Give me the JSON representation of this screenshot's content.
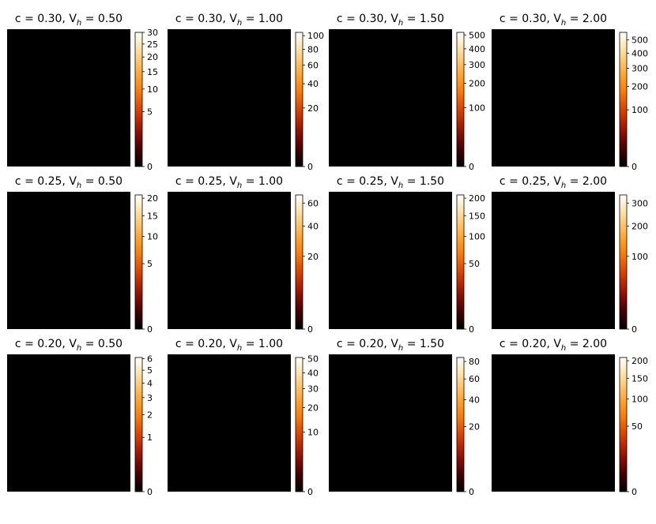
{
  "figure": {
    "title": ""
  },
  "chart_data": [
    {
      "type": "heatmap",
      "title_c": "c = 0.30",
      "title_v": "0.50",
      "vmax": 30,
      "colorbar_ticks": [
        0,
        5,
        10,
        15,
        20,
        25,
        30
      ],
      "dataset_index": 0
    },
    {
      "type": "heatmap",
      "title_c": "c = 0.30",
      "title_v": "1.00",
      "vmax": 105,
      "colorbar_ticks": [
        0,
        20,
        40,
        60,
        80,
        100
      ],
      "dataset_index": 1
    },
    {
      "type": "heatmap",
      "title_c": "c = 0.30",
      "title_v": "1.50",
      "vmax": 520,
      "colorbar_ticks": [
        0,
        100,
        200,
        300,
        400,
        500
      ],
      "dataset_index": 2
    },
    {
      "type": "heatmap",
      "title_c": "c = 0.30",
      "title_v": "2.00",
      "vmax": 560,
      "colorbar_ticks": [
        0,
        100,
        200,
        300,
        400,
        500
      ],
      "dataset_index": 3
    },
    {
      "type": "heatmap",
      "title_c": "c = 0.25",
      "title_v": "0.50",
      "vmax": 21,
      "colorbar_ticks": [
        0,
        5,
        10,
        15,
        20
      ],
      "dataset_index": 4
    },
    {
      "type": "heatmap",
      "title_c": "c = 0.25",
      "title_v": "1.00",
      "vmax": 68,
      "colorbar_ticks": [
        0,
        20,
        40,
        60
      ],
      "dataset_index": 5
    },
    {
      "type": "heatmap",
      "title_c": "c = 0.25",
      "title_v": "1.50",
      "vmax": 210,
      "colorbar_ticks": [
        0,
        50,
        100,
        150,
        200
      ],
      "dataset_index": 6
    },
    {
      "type": "heatmap",
      "title_c": "c = 0.25",
      "title_v": "2.00",
      "vmax": 340,
      "colorbar_ticks": [
        0,
        100,
        200,
        300
      ],
      "dataset_index": 7
    },
    {
      "type": "heatmap",
      "title_c": "c = 0.20",
      "title_v": "0.50",
      "vmax": 6.1,
      "colorbar_ticks": [
        0,
        1,
        2,
        3,
        4,
        5,
        6
      ],
      "dataset_index": 8
    },
    {
      "type": "heatmap",
      "title_c": "c = 0.20",
      "title_v": "1.00",
      "vmax": 51,
      "colorbar_ticks": [
        0,
        10,
        20,
        30,
        40,
        50
      ],
      "dataset_index": 9
    },
    {
      "type": "heatmap",
      "title_c": "c = 0.20",
      "title_v": "1.50",
      "vmax": 85,
      "colorbar_ticks": [
        0,
        20,
        40,
        60,
        80
      ],
      "dataset_index": 10
    },
    {
      "type": "heatmap",
      "title_c": "c = 0.20",
      "title_v": "2.00",
      "vmax": 210,
      "colorbar_ticks": [
        0,
        50,
        100,
        150,
        200
      ],
      "dataset_index": 11
    }
  ],
  "colormap": [
    "#000000",
    "#3a0000",
    "#7a0a00",
    "#b52400",
    "#e04a00",
    "#f77a0a",
    "#ff9f2a",
    "#ffc46a",
    "#ffe6b2",
    "#ffffff"
  ],
  "colorbar_scale": "sqrt"
}
